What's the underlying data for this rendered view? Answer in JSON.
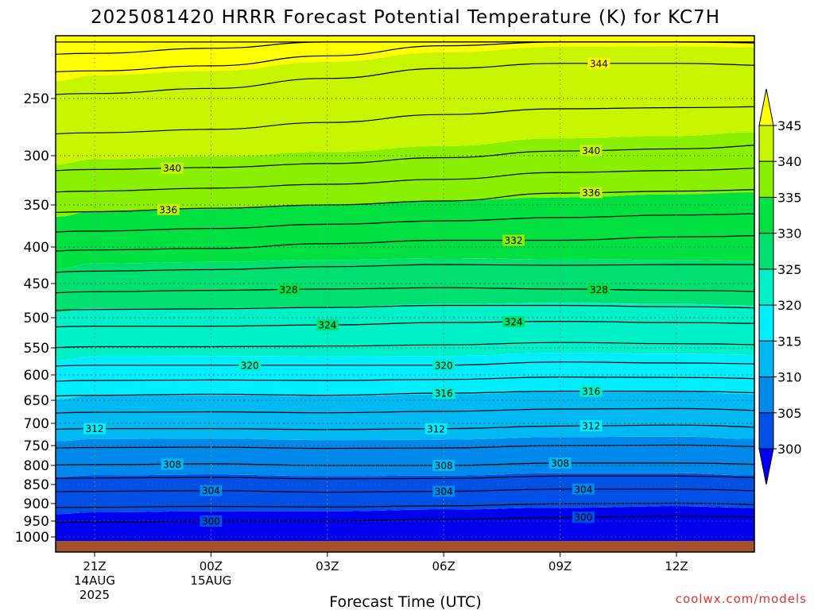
{
  "chart_data": {
    "type": "heatmap",
    "title": "2025081420 HRRR Forecast Potential Temperature (K) for KC7H",
    "xlabel": "Forecast Time (UTC)",
    "ylabel": "",
    "credit": "coolwx.com/models",
    "y_axis": {
      "scale": "pressure-descending",
      "ticks": [
        250,
        300,
        350,
        400,
        450,
        500,
        550,
        600,
        650,
        700,
        750,
        800,
        850,
        900,
        950,
        1000
      ],
      "tick_labels": [
        "250",
        "300",
        "350",
        "400",
        "450",
        "500",
        "550",
        "600",
        "650",
        "700",
        "750",
        "800",
        "850",
        "900",
        "950",
        "1000"
      ],
      "range_hpa": [
        200,
        1025
      ]
    },
    "x_axis": {
      "range_hours": [
        -3,
        14
      ],
      "ticks": [
        {
          "hour": 0,
          "label": "21Z",
          "sub": [
            "14AUG",
            "2025"
          ]
        },
        {
          "hour": 3,
          "label": "00Z",
          "sub": [
            "15AUG"
          ]
        },
        {
          "hour": 6,
          "label": "03Z",
          "sub": []
        },
        {
          "hour": 9,
          "label": "06Z",
          "sub": []
        },
        {
          "hour": 12,
          "label": "09Z",
          "sub": []
        },
        {
          "hour": 15,
          "label": "12Z",
          "sub": []
        }
      ]
    },
    "colorbar": {
      "levels": [
        300,
        305,
        310,
        315,
        320,
        325,
        330,
        335,
        340,
        345
      ],
      "labels": [
        "300",
        "305",
        "310",
        "315",
        "320",
        "325",
        "330",
        "335",
        "340",
        "345"
      ],
      "colors": [
        "#0000ee",
        "#0050e8",
        "#0088ea",
        "#00b8f2",
        "#00eeff",
        "#00f0c8",
        "#00e070",
        "#00e040",
        "#88f000",
        "#c8f500",
        "#ffff00"
      ]
    },
    "surface_color": "#a0522d",
    "contours": [
      {
        "theta": 300,
        "label": "300",
        "p": [
          958,
          953,
          950,
          950,
          945,
          940,
          936,
          940
        ],
        "label_hours": [
          3,
          12.6
        ]
      },
      {
        "theta": 304,
        "label": "304",
        "p": [
          872,
          868,
          866,
          870,
          868,
          862,
          862,
          868
        ],
        "label_hours": [
          3,
          9,
          12.6
        ]
      },
      {
        "theta": 308,
        "label": "308",
        "p": [
          802,
          798,
          796,
          800,
          800,
          794,
          794,
          798
        ],
        "label_hours": [
          2,
          9,
          12
        ]
      },
      {
        "theta": 312,
        "label": "312",
        "p": [
          718,
          712,
          712,
          714,
          712,
          706,
          704,
          710
        ],
        "label_hours": [
          0,
          8.8,
          12.8
        ]
      },
      {
        "theta": 316,
        "label": "316",
        "p": [
          648,
          640,
          638,
          640,
          636,
          632,
          632,
          636
        ],
        "label_hours": [
          9,
          12.8
        ]
      },
      {
        "theta": 320,
        "label": "320",
        "p": [
          590,
          582,
          582,
          582,
          582,
          576,
          578,
          580
        ],
        "label_hours": [
          4,
          9
        ]
      },
      {
        "theta": 324,
        "label": "324",
        "p": [
          520,
          514,
          514,
          512,
          508,
          506,
          508,
          510
        ],
        "label_hours": [
          6,
          10.8
        ]
      },
      {
        "theta": 328,
        "label": "328",
        "p": [
          470,
          462,
          460,
          458,
          456,
          458,
          460,
          462
        ],
        "label_hours": [
          5,
          13
        ]
      },
      {
        "theta": 332,
        "label": "332",
        "p": [
          412,
          404,
          402,
          396,
          392,
          392,
          388,
          386
        ],
        "label_hours": [
          10.8
        ]
      },
      {
        "theta": 336,
        "label": "336",
        "p": [
          362,
          358,
          354,
          350,
          346,
          338,
          336,
          334
        ],
        "label_hours": [
          1.9,
          12.8
        ]
      },
      {
        "theta": 340,
        "label": "340",
        "p": [
          320,
          314,
          312,
          308,
          302,
          296,
          294,
          290
        ],
        "label_hours": [
          2,
          12.8
        ]
      },
      {
        "theta": 344,
        "label": "344",
        "p": [
          250,
          246,
          242,
          234,
          226,
          222,
          222,
          224
        ],
        "label_hours": [
          13
        ]
      }
    ],
    "contour_hours": [
      -3,
      0,
      3,
      6,
      9,
      12,
      15,
      18
    ]
  }
}
